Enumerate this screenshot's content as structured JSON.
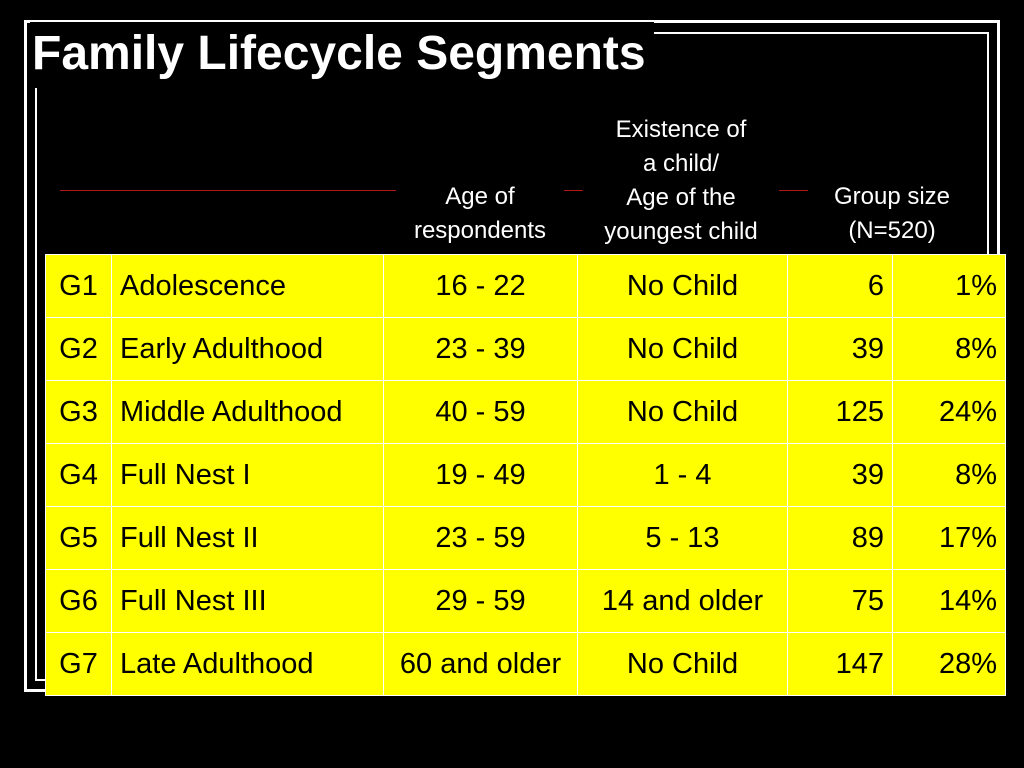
{
  "slide": {
    "title": "Family Lifecycle Segments"
  },
  "headers": {
    "age": "Age of\nrespondents",
    "child": "Existence of\na child/\nAge of the\nyoungest child",
    "size": "Group size\n(N=520)"
  },
  "colors": {
    "background": "#000000",
    "table_fill": "#ffff00",
    "rule_line": "#b01818"
  },
  "rows": [
    {
      "id": "G1",
      "name": "Adolescence",
      "age": "16 - 22",
      "child": "No Child",
      "n": "6",
      "pct": "1%"
    },
    {
      "id": "G2",
      "name": "Early Adulthood",
      "age": "23 - 39",
      "child": "No Child",
      "n": "39",
      "pct": "8%"
    },
    {
      "id": "G3",
      "name": "Middle Adulthood",
      "age": "40 - 59",
      "child": "No Child",
      "n": "125",
      "pct": "24%"
    },
    {
      "id": "G4",
      "name": "Full Nest I",
      "age": "19 - 49",
      "child": "1 - 4",
      "n": "39",
      "pct": "8%"
    },
    {
      "id": "G5",
      "name": "Full Nest II",
      "age": "23 - 59",
      "child": "5 - 13",
      "n": "89",
      "pct": "17%"
    },
    {
      "id": "G6",
      "name": "Full Nest III",
      "age": "29 - 59",
      "child": "14 and older",
      "n": "75",
      "pct": "14%"
    },
    {
      "id": "G7",
      "name": "Late Adulthood",
      "age": "60 and older",
      "child": "No Child",
      "n": "147",
      "pct": "28%"
    }
  ]
}
